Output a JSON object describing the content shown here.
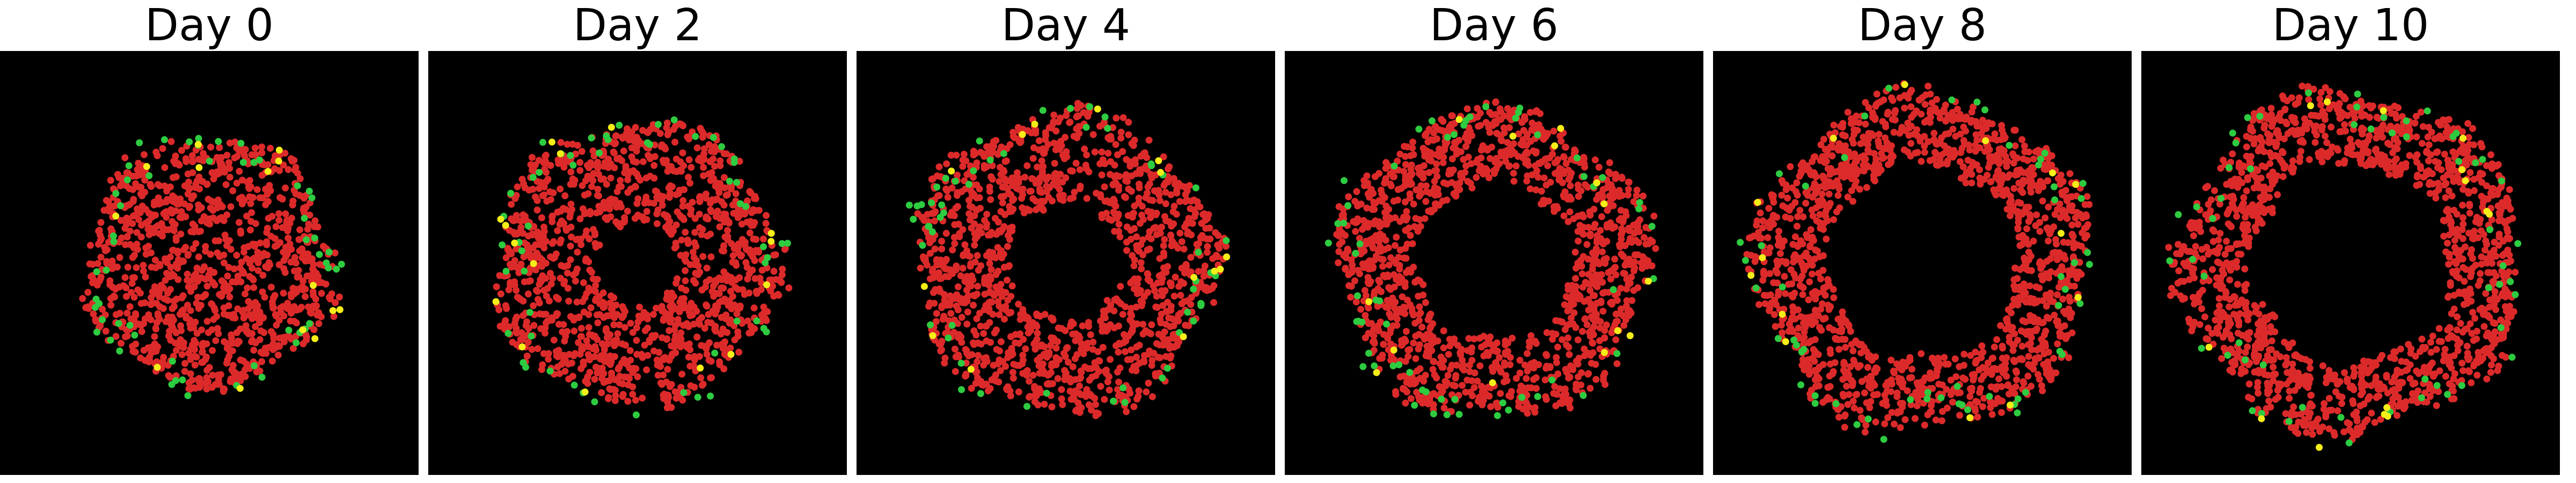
{
  "figure": {
    "background_color": "#ffffff",
    "panel_background_color": "#000000",
    "legend": null
  },
  "cell_colors": {
    "red": "#dc2a2a",
    "green": "#2ecc40",
    "yellow": "#f5ee18"
  },
  "panels": [
    {
      "title": "Day 0",
      "pattern": "filled-disc",
      "colony_radius": 0.3,
      "hole_radius": 0.0,
      "red_count": 1050,
      "green_count": 55,
      "yellow_count": 14
    },
    {
      "title": "Day 2",
      "pattern": "disc-with-faint-center-gap",
      "colony_radius": 0.34,
      "hole_radius": 0.1,
      "red_count": 1250,
      "green_count": 55,
      "yellow_count": 15
    },
    {
      "title": "Day 4",
      "pattern": "ring",
      "colony_radius": 0.36,
      "hole_radius": 0.14,
      "red_count": 1300,
      "green_count": 55,
      "yellow_count": 14
    },
    {
      "title": "Day 6",
      "pattern": "ring",
      "colony_radius": 0.37,
      "hole_radius": 0.19,
      "red_count": 1350,
      "green_count": 58,
      "yellow_count": 14
    },
    {
      "title": "Day 8",
      "pattern": "ring",
      "colony_radius": 0.4,
      "hole_radius": 0.23,
      "red_count": 1450,
      "green_count": 55,
      "yellow_count": 14
    },
    {
      "title": "Day 10",
      "pattern": "ring",
      "colony_radius": 0.41,
      "hole_radius": 0.24,
      "red_count": 1450,
      "green_count": 55,
      "yellow_count": 14
    }
  ]
}
